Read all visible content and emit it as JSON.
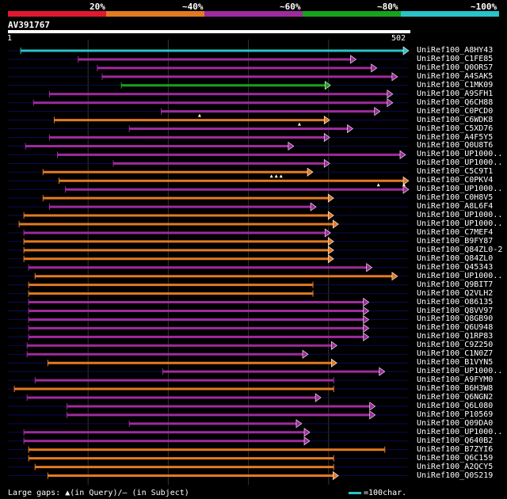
{
  "legend": {
    "labels": [
      "20%",
      "~40%",
      "~60%",
      "~80%",
      "~100%"
    ],
    "colors": [
      "#e0192f",
      "#e37a21",
      "#9e2b9e",
      "#18a31c",
      "#29c3c9"
    ]
  },
  "query": {
    "id": "AV391767",
    "start_label": "1",
    "end_label": "502"
  },
  "footer": {
    "gaps_text": "Large gaps: ▲(in Query)/– (in Subject)",
    "scale_text": "=100char."
  },
  "chart_data": {
    "type": "alignment",
    "query_length": 502,
    "hits": [
      {
        "id": "UniRef100_A8HY43",
        "start": 16,
        "end": 502,
        "identity": "~100%",
        "arrow": true,
        "gaps": []
      },
      {
        "id": "UniRef100_C1FE85",
        "start": 88,
        "end": 436,
        "identity": "~60%",
        "arrow": true,
        "gaps": []
      },
      {
        "id": "UniRef100_Q0ORS7",
        "start": 112,
        "end": 462,
        "identity": "~60%",
        "arrow": true,
        "gaps": []
      },
      {
        "id": "UniRef100_A4SAK5",
        "start": 118,
        "end": 488,
        "identity": "~60%",
        "arrow": true,
        "gaps": []
      },
      {
        "id": "UniRef100_C1MK09",
        "start": 142,
        "end": 404,
        "identity": "~80%",
        "arrow": true,
        "gaps": []
      },
      {
        "id": "UniRef100_A9SFH1",
        "start": 52,
        "end": 482,
        "identity": "~60%",
        "arrow": true,
        "gaps": []
      },
      {
        "id": "UniRef100_Q6CH88",
        "start": 32,
        "end": 482,
        "identity": "~60%",
        "arrow": true,
        "gaps": []
      },
      {
        "id": "UniRef100_C0PCD0",
        "start": 192,
        "end": 466,
        "identity": "~60%",
        "arrow": true,
        "gaps": [
          240
        ]
      },
      {
        "id": "UniRef100_C6WDK8",
        "start": 58,
        "end": 403,
        "identity": "~40%",
        "arrow": true,
        "gaps": [
          365
        ]
      },
      {
        "id": "UniRef100_C5XD76",
        "start": 152,
        "end": 432,
        "identity": "~60%",
        "arrow": true,
        "gaps": []
      },
      {
        "id": "UniRef100_A4F5Y5",
        "start": 52,
        "end": 403,
        "identity": "~60%",
        "arrow": true,
        "gaps": []
      },
      {
        "id": "UniRef100_Q0U8T6",
        "start": 22,
        "end": 358,
        "identity": "~60%",
        "arrow": true,
        "gaps": []
      },
      {
        "id": "UniRef100_UP1000..",
        "start": 62,
        "end": 498,
        "identity": "~60%",
        "arrow": true,
        "gaps": []
      },
      {
        "id": "UniRef100_UP1000..",
        "start": 132,
        "end": 403,
        "identity": "~60%",
        "arrow": true,
        "gaps": []
      },
      {
        "id": "UniRef100_C5C9T1",
        "start": 44,
        "end": 382,
        "identity": "~40%",
        "arrow": true,
        "gaps": [
          330,
          336,
          342
        ]
      },
      {
        "id": "UniRef100_C0PKV4",
        "start": 64,
        "end": 502,
        "identity": "~40%",
        "arrow": true,
        "gaps": [
          464,
          496
        ]
      },
      {
        "id": "UniRef100_UP1000..",
        "start": 72,
        "end": 502,
        "identity": "~60%",
        "arrow": true,
        "gaps": []
      },
      {
        "id": "UniRef100_C0H8V5",
        "start": 44,
        "end": 408,
        "identity": "~40%",
        "arrow": true,
        "gaps": []
      },
      {
        "id": "UniRef100_A8L6F4",
        "start": 52,
        "end": 386,
        "identity": "~60%",
        "arrow": true,
        "gaps": []
      },
      {
        "id": "UniRef100_UP1000..",
        "start": 20,
        "end": 408,
        "identity": "~40%",
        "arrow": true,
        "gaps": []
      },
      {
        "id": "UniRef100_UP1000..",
        "start": 14,
        "end": 414,
        "identity": "~40%",
        "arrow": true,
        "gaps": []
      },
      {
        "id": "UniRef100_C7MEF4",
        "start": 20,
        "end": 404,
        "identity": "~60%",
        "arrow": true,
        "gaps": []
      },
      {
        "id": "UniRef100_B9FY87",
        "start": 20,
        "end": 408,
        "identity": "~40%",
        "arrow": true,
        "gaps": []
      },
      {
        "id": "UniRef100_Q84ZL0-2",
        "start": 20,
        "end": 408,
        "identity": "~40%",
        "arrow": true,
        "gaps": []
      },
      {
        "id": "UniRef100_Q84ZL0",
        "start": 20,
        "end": 408,
        "identity": "~40%",
        "arrow": true,
        "gaps": []
      },
      {
        "id": "UniRef100_Q45343",
        "start": 26,
        "end": 456,
        "identity": "~60%",
        "arrow": true,
        "gaps": []
      },
      {
        "id": "UniRef100_UP1000..",
        "start": 34,
        "end": 488,
        "identity": "~40%",
        "arrow": true,
        "gaps": []
      },
      {
        "id": "UniRef100_Q9BIT7",
        "start": 26,
        "end": 382,
        "identity": "~40%",
        "arrow": false,
        "gaps": []
      },
      {
        "id": "UniRef100_Q2VLH2",
        "start": 26,
        "end": 382,
        "identity": "~40%",
        "arrow": false,
        "gaps": []
      },
      {
        "id": "UniRef100_O86135",
        "start": 26,
        "end": 452,
        "identity": "~60%",
        "arrow": true,
        "gaps": []
      },
      {
        "id": "UniRef100_Q8VV97",
        "start": 26,
        "end": 452,
        "identity": "~60%",
        "arrow": true,
        "gaps": []
      },
      {
        "id": "UniRef100_Q8GB90",
        "start": 26,
        "end": 452,
        "identity": "~60%",
        "arrow": true,
        "gaps": []
      },
      {
        "id": "UniRef100_Q6U948",
        "start": 26,
        "end": 452,
        "identity": "~60%",
        "arrow": true,
        "gaps": []
      },
      {
        "id": "UniRef100_Q1RP83",
        "start": 26,
        "end": 452,
        "identity": "~60%",
        "arrow": true,
        "gaps": []
      },
      {
        "id": "UniRef100_C9Z250",
        "start": 24,
        "end": 412,
        "identity": "~60%",
        "arrow": true,
        "gaps": []
      },
      {
        "id": "UniRef100_C1N0Z7",
        "start": 24,
        "end": 376,
        "identity": "~60%",
        "arrow": true,
        "gaps": []
      },
      {
        "id": "UniRef100_B1VYN5",
        "start": 50,
        "end": 412,
        "identity": "~40%",
        "arrow": true,
        "gaps": []
      },
      {
        "id": "UniRef100_UP1000..",
        "start": 194,
        "end": 472,
        "identity": "~60%",
        "arrow": true,
        "gaps": []
      },
      {
        "id": "UniRef100_A9FYM0",
        "start": 34,
        "end": 408,
        "identity": "~60%",
        "arrow": false,
        "gaps": []
      },
      {
        "id": "UniRef100_B6H3W8",
        "start": 8,
        "end": 408,
        "identity": "~40%",
        "arrow": false,
        "gaps": []
      },
      {
        "id": "UniRef100_Q6NGN2",
        "start": 24,
        "end": 392,
        "identity": "~60%",
        "arrow": true,
        "gaps": []
      },
      {
        "id": "UniRef100_Q6L080",
        "start": 74,
        "end": 460,
        "identity": "~60%",
        "arrow": true,
        "gaps": []
      },
      {
        "id": "UniRef100_P10569",
        "start": 74,
        "end": 460,
        "identity": "~60%",
        "arrow": true,
        "gaps": []
      },
      {
        "id": "UniRef100_Q09DA0",
        "start": 152,
        "end": 368,
        "identity": "~60%",
        "arrow": true,
        "gaps": []
      },
      {
        "id": "UniRef100_UP1000..",
        "start": 20,
        "end": 378,
        "identity": "~60%",
        "arrow": true,
        "gaps": []
      },
      {
        "id": "UniRef100_Q640B2",
        "start": 20,
        "end": 378,
        "identity": "~60%",
        "arrow": true,
        "gaps": []
      },
      {
        "id": "UniRef100_B7ZYI6",
        "start": 26,
        "end": 472,
        "identity": "~40%",
        "arrow": false,
        "gaps": []
      },
      {
        "id": "UniRef100_Q6C159",
        "start": 26,
        "end": 408,
        "identity": "~40%",
        "arrow": false,
        "gaps": []
      },
      {
        "id": "UniRef100_A2QCY5",
        "start": 34,
        "end": 408,
        "identity": "~40%",
        "arrow": false,
        "gaps": []
      },
      {
        "id": "UniRef100_Q0S219",
        "start": 50,
        "end": 414,
        "identity": "~40%",
        "arrow": true,
        "gaps": []
      }
    ]
  }
}
